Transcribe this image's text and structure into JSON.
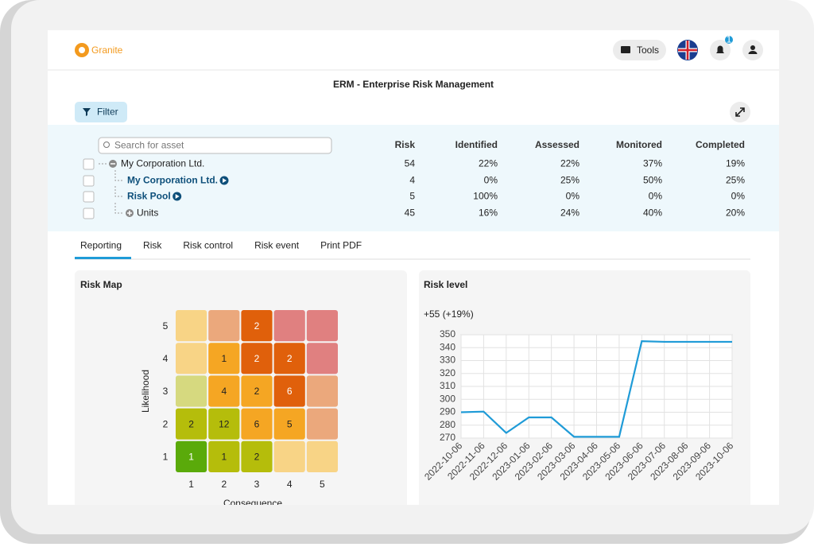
{
  "header": {
    "logo": "Granite",
    "tools": "Tools",
    "notifications": "1"
  },
  "title": "ERM - Enterprise Risk Management",
  "filter": "Filter",
  "table": {
    "search_placeholder": "Search for asset",
    "columns": [
      "Risk",
      "Identified",
      "Assessed",
      "Monitored",
      "Completed"
    ],
    "rows": [
      {
        "name": "My Corporation Ltd.",
        "cells": [
          54,
          "22%",
          "22%",
          "37%",
          "19%"
        ]
      },
      {
        "name": "My Corporation Ltd.",
        "cells": [
          4,
          "0%",
          "25%",
          "50%",
          "25%"
        ]
      },
      {
        "name": "Risk Pool",
        "cells": [
          5,
          "100%",
          "0%",
          "0%",
          "0%"
        ]
      },
      {
        "name": "Units",
        "cells": [
          45,
          "16%",
          "24%",
          "40%",
          "20%"
        ]
      }
    ]
  },
  "tabs": [
    "Reporting",
    "Risk",
    "Risk control",
    "Risk event",
    "Print PDF"
  ],
  "risk_map": {
    "title": "Risk Map",
    "x_label": "Consequence",
    "y_label": "Likelihood",
    "x_ticks": [
      1,
      2,
      3,
      4,
      5
    ],
    "y_ticks": [
      5,
      4,
      3,
      2,
      1
    ],
    "rows": [
      [
        {
          "color": "#f8d486",
          "count": null
        },
        {
          "color": "#eba87c",
          "count": null
        },
        {
          "color": "#e0600b",
          "count": 2
        },
        {
          "color": "#e08080",
          "count": null
        },
        {
          "color": "#e08080",
          "count": null
        }
      ],
      [
        {
          "color": "#f8d486",
          "count": null
        },
        {
          "color": "#f5a623",
          "count": 1
        },
        {
          "color": "#e0600b",
          "count": 2
        },
        {
          "color": "#e0600b",
          "count": 2
        },
        {
          "color": "#e08080",
          "count": null
        }
      ],
      [
        {
          "color": "#d6d97f",
          "count": null
        },
        {
          "color": "#f5a623",
          "count": 4
        },
        {
          "color": "#f5a623",
          "count": 2
        },
        {
          "color": "#e0600b",
          "count": 6
        },
        {
          "color": "#eba87c",
          "count": null
        }
      ],
      [
        {
          "color": "#b5bd0b",
          "count": 2
        },
        {
          "color": "#b5bd0b",
          "count": 12
        },
        {
          "color": "#f5a623",
          "count": 6
        },
        {
          "color": "#f5a623",
          "count": 5
        },
        {
          "color": "#eba87c",
          "count": null
        }
      ],
      [
        {
          "color": "#5aaa0a",
          "count": 1
        },
        {
          "color": "#b5bd0b",
          "count": 1
        },
        {
          "color": "#b5bd0b",
          "count": 2
        },
        {
          "color": "#f8d486",
          "count": null
        },
        {
          "color": "#f8d486",
          "count": null
        }
      ]
    ]
  },
  "chart_data": {
    "type": "line",
    "title": "Risk level",
    "subtitle": "+55 (+19%)",
    "categories": [
      "2022-10-06",
      "2022-11-06",
      "2022-12-06",
      "2023-01-06",
      "2023-02-06",
      "2023-03-06",
      "2023-04-06",
      "2023-05-06",
      "2023-06-06",
      "2023-07-06",
      "2023-08-06",
      "2023-09-06",
      "2023-10-06"
    ],
    "values": [
      290,
      290.5,
      274,
      286,
      286,
      271,
      271,
      271,
      345,
      344.5,
      344.5,
      344.5,
      344.5
    ],
    "color": "#1f9bd7",
    "ylim": [
      270,
      350
    ],
    "yticks": [
      270,
      280,
      290,
      300,
      310,
      320,
      330,
      340,
      350
    ],
    "grid": true
  }
}
